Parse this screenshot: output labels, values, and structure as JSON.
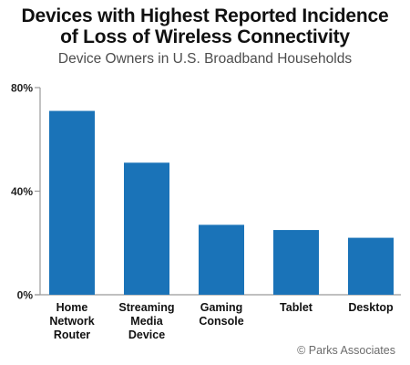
{
  "chart_data": {
    "type": "bar",
    "title": [
      "Devices with Highest Reported Incidence",
      "of Loss of Wireless Connectivity"
    ],
    "subtitle": "Device Owners in U.S. Broadband Households",
    "categories": [
      [
        "Home",
        "Network",
        "Router"
      ],
      [
        "Streaming",
        "Media",
        "Device"
      ],
      [
        "Gaming",
        "Console"
      ],
      [
        "Tablet"
      ],
      [
        "Desktop"
      ]
    ],
    "values": [
      71,
      51,
      27,
      25,
      22
    ],
    "unit": "%",
    "ylim": [
      0,
      80
    ],
    "yticks": [
      0,
      40,
      80
    ],
    "ytick_labels": [
      "0%",
      "40%",
      "80%"
    ],
    "bar_color": "#1a73b8",
    "axis_color": "#9a9a9a",
    "grid": false,
    "source": "© Parks Associates"
  }
}
